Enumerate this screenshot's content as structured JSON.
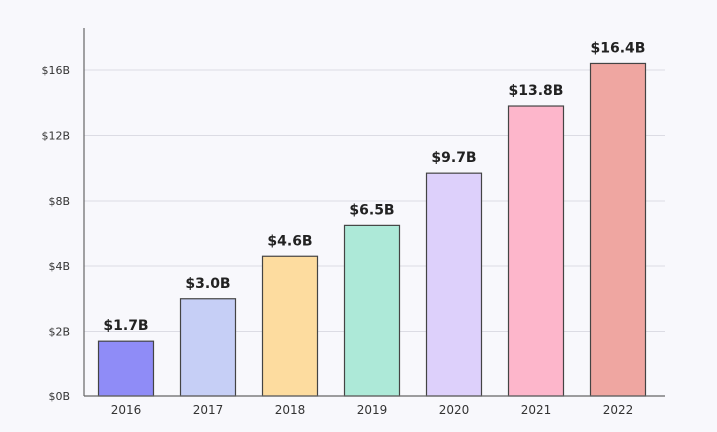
{
  "chart_data": {
    "type": "bar",
    "title": "",
    "xlabel": "",
    "ylabel": "",
    "categories": [
      "2016",
      "2017",
      "2018",
      "2019",
      "2020",
      "2021",
      "2022"
    ],
    "values": [
      1.7,
      3.0,
      4.6,
      6.5,
      9.7,
      13.8,
      16.4
    ],
    "data_labels": [
      "$1.7B",
      "$3.0B",
      "$4.6B",
      "$6.5B",
      "$9.7B",
      "$13.8B",
      "$16.4B"
    ],
    "colors": [
      "#8f8cf7",
      "#c6cff6",
      "#fddc9f",
      "#ade9d8",
      "#ddd0fb",
      "#fdb6cb",
      "#efa6a1"
    ],
    "yticks": [
      {
        "value": 0,
        "label": "$0B"
      },
      {
        "value": 2,
        "label": "$2B"
      },
      {
        "value": 4,
        "label": "$4B"
      },
      {
        "value": 8,
        "label": "$8B"
      },
      {
        "value": 12,
        "label": "$12B"
      },
      {
        "value": 16,
        "label": "$16B"
      }
    ],
    "grid": true,
    "legend": "none"
  }
}
